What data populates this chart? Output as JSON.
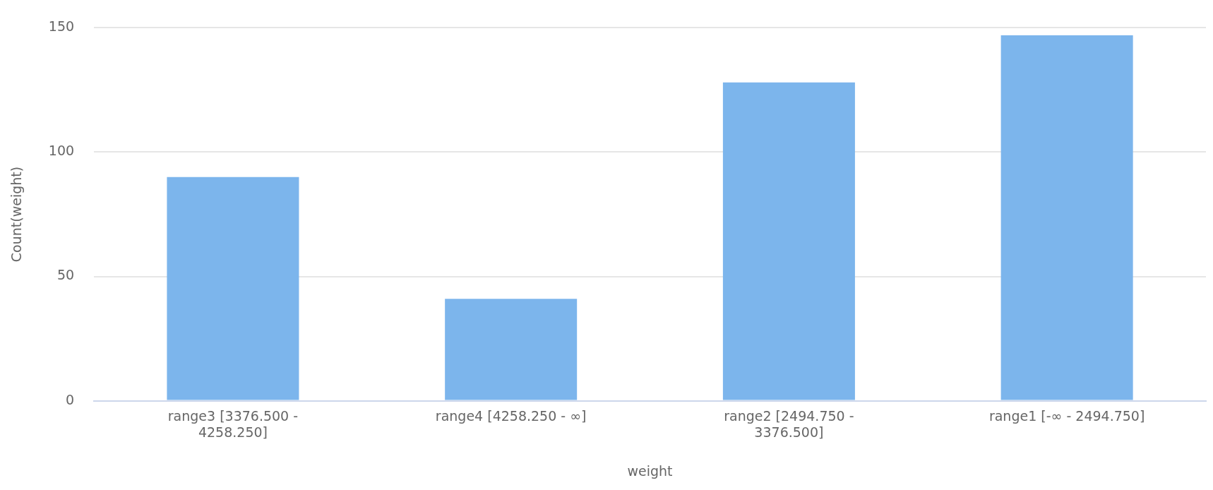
{
  "chart_data": {
    "type": "bar",
    "xlabel": "weight",
    "ylabel": "Count(weight)",
    "categories": [
      "range3 [3376.500 - 4258.250]",
      "range4 [4258.250 - ∞]",
      "range2 [2494.750 - 3376.500]",
      "range1 [-∞ - 2494.750]"
    ],
    "values": [
      90,
      41,
      128,
      147
    ],
    "color": "#7cb5ec",
    "ylim": [
      0,
      150
    ],
    "yticks": [
      0,
      50,
      100,
      150
    ],
    "grid": "y"
  }
}
